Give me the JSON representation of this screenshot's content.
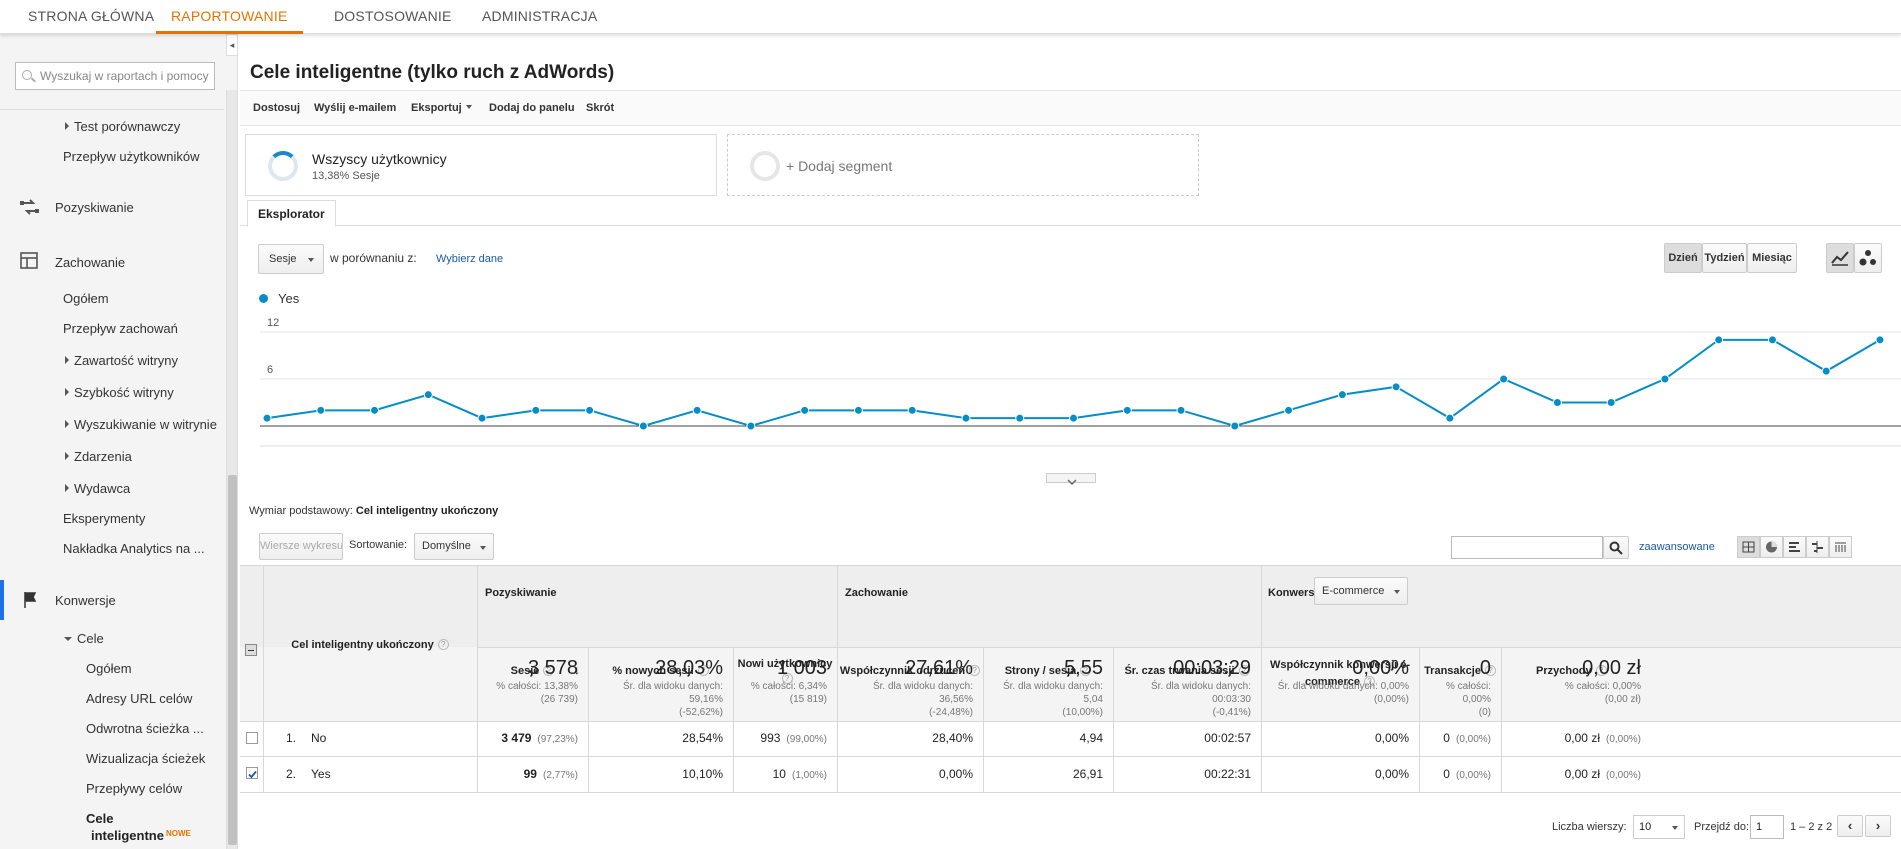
{
  "topnav": {
    "tabs": [
      {
        "label": "STRONA GŁÓWNA"
      },
      {
        "label": "RAPORTOWANIE",
        "active": true
      },
      {
        "label": "DOSTOSOWANIE"
      },
      {
        "label": "ADMINISTRACJA"
      }
    ]
  },
  "sidebar": {
    "search_placeholder": "Wyszukaj w raportach i pomocy",
    "items": {
      "test": "Test porównawczy",
      "przeplyw_uzytkownikow": "Przepływ użytkowników",
      "pozyskiwanie": "Pozyskiwanie",
      "zachowanie": "Zachowanie",
      "ogolem": "Ogółem",
      "przeplyw_zachowan": "Przepływ zachowań",
      "zawartosc": "Zawartość witryny",
      "szybkosc": "Szybkość witryny",
      "wyszukiwanie": "Wyszukiwanie w witrynie",
      "zdarzenia": "Zdarzenia",
      "wydawca": "Wydawca",
      "eksperymenty": "Eksperymenty",
      "nakladka": "Nakładka Analytics na ...",
      "konwersje": "Konwersje",
      "cele": "Cele",
      "cele_ogolem": "Ogółem",
      "adresy": "Adresy URL celów",
      "odwrotna": "Odwrotna ścieżka ...",
      "wizualizacja": "Wizualizacja ścieżek",
      "przeplywy_celow": "Przepływy celów",
      "cele_intel_1": "Cele",
      "cele_intel_2": "inteligentne",
      "nowe": "NOWE"
    }
  },
  "page": {
    "title": "Cele inteligentne (tylko ruch z AdWords)"
  },
  "toolbar": {
    "dostosuj": "Dostosuj",
    "email": "Wyślij e-mailem",
    "eksportuj": "Eksportuj",
    "dodaj": "Dodaj do panelu",
    "skrot": "Skrót"
  },
  "segments": {
    "all_name": "Wszyscy użytkownicy",
    "all_sub": "13,38% Sesje",
    "add": "+ Dodaj segment"
  },
  "explorer": {
    "tab": "Eksplorator",
    "metric": "Sesje",
    "compare": "w porównaniu z:",
    "choose": "Wybierz dane",
    "dzien": "Dzień",
    "tydzien": "Tydzień",
    "miesiac": "Miesiąc",
    "legend": "Yes",
    "line_color": "#058dc7"
  },
  "chart_data": {
    "type": "line",
    "series": [
      {
        "name": "Yes",
        "values": [
          1,
          2,
          2,
          4,
          1,
          2,
          2,
          0,
          2,
          0,
          2,
          2,
          2,
          1,
          1,
          1,
          2,
          2,
          0,
          2,
          4,
          5,
          1,
          6,
          3,
          3,
          6,
          11,
          11,
          7,
          11
        ]
      }
    ],
    "ylim": [
      0,
      12
    ],
    "yticks": [
      "6",
      "12"
    ]
  },
  "table": {
    "dimension_label": "Wymiar podstawowy:",
    "dimension_value": "Cel inteligentny ukończony",
    "wiersze": "Wiersze wykresu",
    "sortowanie": "Sortowanie:",
    "domyslne": "Domyślne",
    "zaawansowane": "zaawansowane",
    "col_dim": "Cel inteligentny ukończony",
    "group_pozyskiwanie": "Pozyskiwanie",
    "group_zachowanie": "Zachowanie",
    "group_konwersje": "Konwersje",
    "ecommerce": "E-commerce",
    "cols": [
      "Sesje",
      "% nowych sesji",
      "Nowi użytkownicy",
      "Współczynnik odrzuceń",
      "Strony / sesja",
      "Śr. czas trwania sesji",
      "Współczynnik konwersji e-commerce",
      "Transakcje",
      "Przychody"
    ],
    "totals": [
      {
        "big": "3 578",
        "sub1": "% całości: 13,38%",
        "sub2": "(26 739)"
      },
      {
        "big": "28,03%",
        "sub1": "Śr. dla widoku danych: 59,16%",
        "sub2": "(-52,62%)"
      },
      {
        "big": "1 003",
        "sub1": "% całości: 6,34%",
        "sub2": "(15 819)"
      },
      {
        "big": "27,61%",
        "sub1": "Śr. dla widoku danych: 36,56%",
        "sub2": "(-24,48%)"
      },
      {
        "big": "5,55",
        "sub1": "Śr. dla widoku danych: 5,04",
        "sub2": "(10,00%)"
      },
      {
        "big": "00:03:29",
        "sub1": "Śr. dla widoku danych: 00:03:30",
        "sub2": "(-0,41%)"
      },
      {
        "big": "0,00%",
        "sub1": "Śr. dla widoku danych: 0,00%",
        "sub2": "(0,00%)"
      },
      {
        "big": "0",
        "sub1": "% całości: 0,00%",
        "sub2": "(0)"
      },
      {
        "big": "0,00 zł",
        "sub1": "% całości: 0,00%",
        "sub2": "(0,00 zł)"
      }
    ],
    "rows": [
      {
        "num": "1.",
        "name": "No",
        "sesje": "3 479",
        "sesje_pct": "(97,23%)",
        "nowe": "28,54%",
        "nowi": "993",
        "nowi_pct": "(99,00%)",
        "odrz": "28,40%",
        "strony": "4,94",
        "czas": "00:02:57",
        "konw": "0,00%",
        "trans": "0",
        "trans_pct": "(0,00%)",
        "przych": "0,00 zł",
        "przych_pct": "(0,00%)"
      },
      {
        "num": "2.",
        "name": "Yes",
        "sesje": "99",
        "sesje_pct": "(2,77%)",
        "nowe": "10,10%",
        "nowi": "10",
        "nowi_pct": "(1,00%)",
        "odrz": "0,00%",
        "strony": "26,91",
        "czas": "00:22:31",
        "konw": "0,00%",
        "trans": "0",
        "trans_pct": "(0,00%)",
        "przych": "0,00 zł",
        "przych_pct": "(0,00%)"
      }
    ],
    "liczba": "Liczba wierszy:",
    "liczba_val": "10",
    "przejdz": "Przejdź do:",
    "przejdz_val": "1",
    "zakres": "1 – 2 z 2"
  }
}
